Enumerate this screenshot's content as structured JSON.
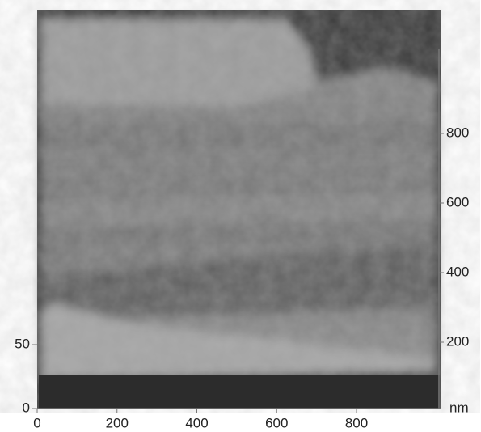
{
  "x_axis": {
    "ticks": [
      0,
      200,
      400,
      600,
      800
    ]
  },
  "right_axis": {
    "ticks": [
      200,
      400,
      600,
      800
    ],
    "unit": "nm"
  },
  "left_axis": {
    "ticks": [
      0,
      50
    ]
  }
}
